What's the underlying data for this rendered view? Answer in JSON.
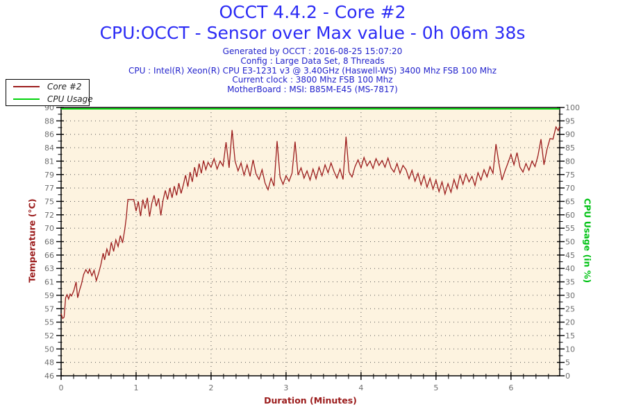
{
  "header": {
    "title": "OCCT 4.4.2 - Core #2",
    "subtitle": "CPU:OCCT - Sensor over Max value - 0h 06m 38s",
    "info_lines": [
      "Generated by OCCT : 2016-08-25 15:07:20",
      "Config : Large Data Set, 8 Threads",
      "CPU : Intel(R) Xeon(R) CPU E3-1231 v3 @ 3.40GHz (Haswell-WS) 3400 Mhz FSB 100 Mhz",
      "Current clock : 3800 Mhz FSB 100 Mhz",
      "MotherBoard : MSI: B85M-E45 (MS-7817)"
    ]
  },
  "legend": {
    "items": [
      {
        "label": "Core #2",
        "color": "#9b1b1b"
      },
      {
        "label": "CPU Usage",
        "color": "#00d20a"
      }
    ]
  },
  "colors": {
    "title_blue": "#2b2bf5",
    "info_blue": "#2222cc",
    "temp_red": "#9b1b1b",
    "cpu_green": "#00d20a",
    "plot_background": "#fdf3e0",
    "grid_dots": "#555555",
    "tick_label_gray": "#6e6e6e",
    "frame_black": "#000000"
  },
  "chart_data": {
    "type": "line",
    "title": "OCCT 4.4.2 - Core #2",
    "subtitle": "CPU:OCCT - Sensor over Max value - 0h 06m 38s",
    "xlabel": "Duration (Minutes)",
    "ylabel_left": "Temperature (°C)",
    "ylabel_right": "CPU Usage (in %)",
    "grid": true,
    "legend_position": "top-left",
    "xlim": [
      0,
      6.65
    ],
    "x_major_ticks": [
      0,
      1,
      2,
      3,
      4,
      5,
      6
    ],
    "x_minor_divisions": 6,
    "ylim_left": [
      46,
      90
    ],
    "y_left_tick_labels": [
      "90",
      "88",
      "86",
      "84",
      "81",
      "79",
      "77",
      "75",
      "72",
      "70",
      "68",
      "66",
      "63",
      "61",
      "59",
      "57",
      "55",
      "52",
      "50",
      "48",
      "46"
    ],
    "ylim_right": [
      0,
      100
    ],
    "y_right_tick_labels": [
      "100",
      "95",
      "90",
      "85",
      "80",
      "75",
      "70",
      "65",
      "60",
      "55",
      "50",
      "45",
      "40",
      "35",
      "30",
      "25",
      "20",
      "15",
      "10",
      "5",
      "0"
    ],
    "series": [
      {
        "name": "Core #2",
        "axis": "left",
        "color": "#9b1b1b",
        "x": [
          0,
          0.02,
          0.04,
          0.06,
          0.08,
          0.1,
          0.12,
          0.14,
          0.17,
          0.2,
          0.22,
          0.25,
          0.27,
          0.3,
          0.33,
          0.36,
          0.38,
          0.41,
          0.44,
          0.47,
          0.5,
          0.53,
          0.56,
          0.58,
          0.61,
          0.64,
          0.67,
          0.7,
          0.73,
          0.76,
          0.79,
          0.82,
          0.85,
          0.87,
          0.89,
          0.97,
          1.0,
          1.03,
          1.06,
          1.09,
          1.12,
          1.15,
          1.18,
          1.21,
          1.24,
          1.27,
          1.3,
          1.33,
          1.36,
          1.39,
          1.42,
          1.45,
          1.48,
          1.51,
          1.54,
          1.57,
          1.6,
          1.63,
          1.66,
          1.69,
          1.72,
          1.75,
          1.78,
          1.81,
          1.84,
          1.87,
          1.9,
          1.93,
          1.96,
          2.0,
          2.04,
          2.08,
          2.12,
          2.16,
          2.2,
          2.24,
          2.28,
          2.32,
          2.36,
          2.4,
          2.44,
          2.48,
          2.52,
          2.56,
          2.6,
          2.64,
          2.68,
          2.72,
          2.76,
          2.8,
          2.84,
          2.88,
          2.92,
          2.96,
          3.0,
          3.04,
          3.08,
          3.12,
          3.16,
          3.2,
          3.24,
          3.28,
          3.32,
          3.36,
          3.4,
          3.44,
          3.48,
          3.52,
          3.56,
          3.6,
          3.64,
          3.68,
          3.72,
          3.76,
          3.8,
          3.84,
          3.88,
          3.92,
          3.96,
          4.0,
          4.04,
          4.08,
          4.12,
          4.16,
          4.2,
          4.24,
          4.28,
          4.32,
          4.36,
          4.4,
          4.44,
          4.48,
          4.52,
          4.56,
          4.6,
          4.64,
          4.68,
          4.72,
          4.76,
          4.8,
          4.84,
          4.88,
          4.92,
          4.96,
          5.0,
          5.04,
          5.08,
          5.12,
          5.16,
          5.2,
          5.24,
          5.28,
          5.32,
          5.36,
          5.4,
          5.44,
          5.48,
          5.52,
          5.56,
          5.6,
          5.64,
          5.68,
          5.72,
          5.76,
          5.8,
          5.84,
          5.88,
          5.92,
          5.96,
          6.0,
          6.04,
          6.08,
          6.12,
          6.16,
          6.2,
          6.24,
          6.28,
          6.32,
          6.36,
          6.4,
          6.44,
          6.48,
          6.52,
          6.56,
          6.6,
          6.63,
          6.65
        ],
        "y": [
          56.2,
          55.4,
          55.6,
          58.8,
          59.3,
          58.6,
          59.4,
          59.1,
          60.0,
          61.4,
          58.8,
          60.2,
          61.0,
          62.6,
          63.4,
          62.8,
          63.5,
          62.4,
          63.3,
          61.6,
          62.8,
          64.2,
          66.1,
          65.0,
          66.8,
          65.7,
          67.9,
          66.4,
          68.3,
          67.2,
          69.0,
          67.8,
          70.1,
          72.0,
          74.9,
          74.9,
          73.0,
          74.6,
          72.2,
          74.9,
          73.4,
          75.2,
          72.1,
          74.3,
          75.6,
          73.8,
          75.1,
          72.3,
          74.8,
          76.4,
          74.9,
          76.8,
          75.2,
          77.1,
          75.6,
          77.6,
          75.9,
          77.3,
          78.9,
          77.0,
          79.4,
          77.8,
          80.2,
          78.6,
          80.8,
          79.2,
          81.3,
          79.8,
          81.0,
          80.2,
          81.6,
          79.9,
          81.2,
          80.4,
          84.3,
          80.1,
          86.3,
          81.2,
          79.6,
          80.9,
          78.9,
          80.6,
          78.7,
          81.4,
          79.1,
          78.2,
          79.8,
          77.6,
          76.5,
          78.4,
          77.1,
          84.5,
          78.6,
          77.4,
          78.8,
          77.9,
          79.2,
          84.4,
          78.9,
          80.1,
          78.4,
          79.6,
          78.1,
          79.9,
          78.3,
          80.2,
          78.8,
          80.6,
          79.3,
          80.9,
          79.5,
          78.4,
          79.9,
          78.2,
          85.2,
          79.4,
          78.6,
          80.3,
          81.4,
          80.1,
          81.8,
          80.4,
          81.2,
          80.0,
          81.6,
          80.5,
          81.3,
          80.2,
          81.7,
          80.1,
          79.4,
          80.8,
          79.2,
          80.5,
          79.8,
          78.3,
          79.7,
          77.9,
          79.2,
          77.3,
          78.8,
          76.9,
          78.4,
          76.6,
          78.1,
          76.2,
          77.8,
          75.8,
          77.5,
          76.1,
          78.2,
          76.7,
          78.9,
          77.4,
          79.1,
          77.8,
          78.7,
          77.2,
          79.3,
          78.1,
          79.8,
          78.6,
          80.3,
          79.2,
          84.0,
          80.8,
          78.1,
          79.6,
          80.9,
          82.3,
          80.6,
          82.6,
          80.2,
          79.4,
          80.8,
          79.7,
          81.2,
          80.3,
          82.1,
          84.8,
          80.6,
          83.1,
          84.9,
          84.8,
          86.8,
          86.2,
          86.9
        ]
      },
      {
        "name": "CPU Usage",
        "axis": "right",
        "color": "#00d20a",
        "x": [
          0,
          6.65
        ],
        "y": [
          100,
          100
        ]
      }
    ]
  }
}
